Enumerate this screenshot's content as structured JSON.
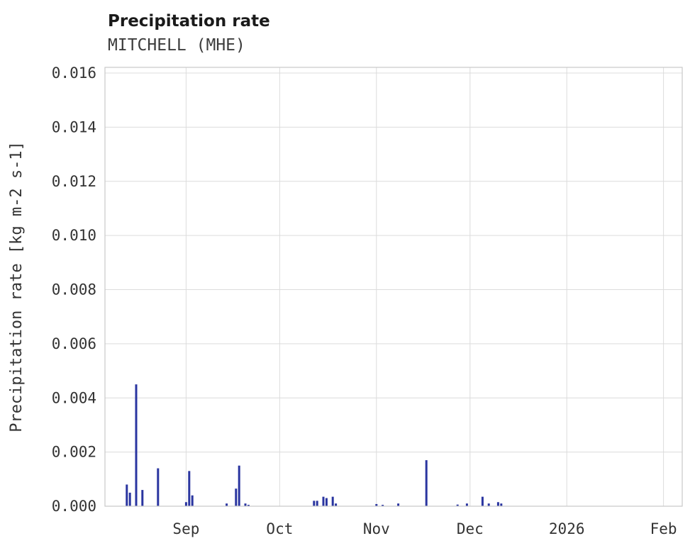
{
  "header": {
    "title": "Precipitation rate",
    "subtitle": "MITCHELL (MHE)"
  },
  "chart_data": {
    "type": "bar",
    "title": "Precipitation rate",
    "subtitle": "MITCHELL (MHE)",
    "xlabel": "",
    "ylabel": "Precipitation rate [kg m-2 s-1]",
    "ylim": [
      0,
      0.016
    ],
    "grid": true,
    "legend": "none",
    "bar_color": "#2a35a0",
    "grid_color": "#dcdcdc",
    "border_color": "#c9c9c9",
    "text_color": "#333333",
    "x_domain": [
      "2025-08-06",
      "2026-02-07"
    ],
    "yticks": [
      0.0,
      0.002,
      0.004,
      0.006,
      0.008,
      0.01,
      0.012,
      0.014,
      0.016
    ],
    "ytick_labels": [
      "0.000",
      "0.002",
      "0.004",
      "0.006",
      "0.008",
      "0.010",
      "0.012",
      "0.014",
      "0.016"
    ],
    "xticks": [
      {
        "date": "2025-09-01",
        "label": "Sep"
      },
      {
        "date": "2025-10-01",
        "label": "Oct"
      },
      {
        "date": "2025-11-01",
        "label": "Nov"
      },
      {
        "date": "2025-12-01",
        "label": "Dec"
      },
      {
        "date": "2026-01-01",
        "label": "2026"
      },
      {
        "date": "2026-02-01",
        "label": "Feb"
      }
    ],
    "points": [
      {
        "date": "2025-08-13",
        "value": 0.0008
      },
      {
        "date": "2025-08-14",
        "value": 0.0005
      },
      {
        "date": "2025-08-16",
        "value": 0.0045
      },
      {
        "date": "2025-08-18",
        "value": 0.0006
      },
      {
        "date": "2025-08-23",
        "value": 0.0014
      },
      {
        "date": "2025-09-01",
        "value": 0.00015
      },
      {
        "date": "2025-09-02",
        "value": 0.0013
      },
      {
        "date": "2025-09-03",
        "value": 0.0004
      },
      {
        "date": "2025-09-14",
        "value": 0.0001
      },
      {
        "date": "2025-09-17",
        "value": 0.00065
      },
      {
        "date": "2025-09-18",
        "value": 0.0015
      },
      {
        "date": "2025-09-20",
        "value": 0.0001
      },
      {
        "date": "2025-09-21",
        "value": 5e-05
      },
      {
        "date": "2025-10-12",
        "value": 0.0002
      },
      {
        "date": "2025-10-13",
        "value": 0.0002
      },
      {
        "date": "2025-10-15",
        "value": 0.00035
      },
      {
        "date": "2025-10-16",
        "value": 0.0003
      },
      {
        "date": "2025-10-18",
        "value": 0.00035
      },
      {
        "date": "2025-10-19",
        "value": 0.0001
      },
      {
        "date": "2025-11-01",
        "value": 8e-05
      },
      {
        "date": "2025-11-03",
        "value": 5e-05
      },
      {
        "date": "2025-11-08",
        "value": 0.0001
      },
      {
        "date": "2025-11-17",
        "value": 0.0017
      },
      {
        "date": "2025-11-27",
        "value": 6e-05
      },
      {
        "date": "2025-11-30",
        "value": 0.0001
      },
      {
        "date": "2025-12-05",
        "value": 0.00035
      },
      {
        "date": "2025-12-07",
        "value": 0.0001
      },
      {
        "date": "2025-12-10",
        "value": 0.00015
      },
      {
        "date": "2025-12-11",
        "value": 0.0001
      }
    ]
  }
}
